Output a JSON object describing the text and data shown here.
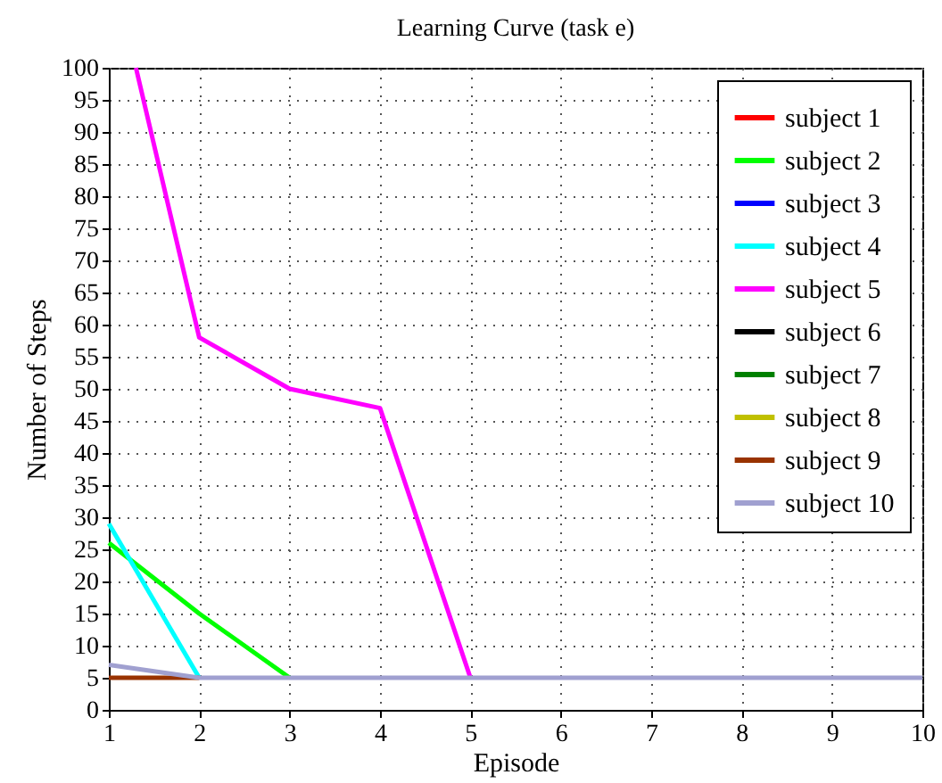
{
  "chart_data": {
    "type": "line",
    "title": "Learning Curve (task e)",
    "xlabel": "Episode",
    "ylabel": "Number of Steps",
    "x": [
      1,
      2,
      3,
      4,
      5,
      6,
      7,
      8,
      9,
      10
    ],
    "xlim": [
      1,
      10
    ],
    "xticks": [
      1,
      2,
      3,
      4,
      5,
      6,
      7,
      8,
      9,
      10
    ],
    "ylim": [
      0,
      100
    ],
    "yticks": [
      0,
      5,
      10,
      15,
      20,
      25,
      30,
      35,
      40,
      45,
      50,
      55,
      60,
      65,
      70,
      75,
      80,
      85,
      90,
      95,
      100
    ],
    "grid": true,
    "legend": "top right",
    "line_style": "solid",
    "marker": "none",
    "series": [
      {
        "name": "subject 1",
        "color": "#ff0000",
        "values": [
          null,
          null,
          null,
          null,
          null,
          null,
          null,
          null,
          null,
          null
        ]
      },
      {
        "name": "subject 2",
        "color": "#00ff00",
        "values": [
          26,
          15,
          5,
          null,
          null,
          null,
          null,
          null,
          null,
          null
        ]
      },
      {
        "name": "subject 3",
        "color": "#0000ff",
        "values": [
          null,
          null,
          null,
          null,
          null,
          null,
          null,
          null,
          null,
          null
        ]
      },
      {
        "name": "subject 4",
        "color": "#00ffff",
        "values": [
          29,
          5,
          null,
          null,
          null,
          null,
          null,
          null,
          null,
          null
        ]
      },
      {
        "name": "subject 5",
        "color": "#ff00ff",
        "x": [
          1.3,
          2,
          3,
          4,
          5
        ],
        "values": [
          100,
          58,
          50,
          47,
          5
        ]
      },
      {
        "name": "subject 6",
        "color": "#000000",
        "values": [
          null,
          null,
          null,
          null,
          null,
          null,
          null,
          null,
          null,
          null
        ]
      },
      {
        "name": "subject 7",
        "color": "#008000",
        "values": [
          null,
          null,
          null,
          null,
          null,
          null,
          null,
          null,
          null,
          null
        ]
      },
      {
        "name": "subject 8",
        "color": "#c0c000",
        "values": [
          null,
          null,
          null,
          null,
          null,
          null,
          null,
          null,
          null,
          null
        ]
      },
      {
        "name": "subject 9",
        "color": "#993300",
        "values": [
          5,
          5,
          null,
          null,
          null,
          null,
          null,
          null,
          null,
          null
        ]
      },
      {
        "name": "subject 10",
        "color": "#a0a0d0",
        "values": [
          7,
          5,
          5,
          5,
          5,
          5,
          5,
          5,
          5,
          5
        ]
      }
    ]
  }
}
